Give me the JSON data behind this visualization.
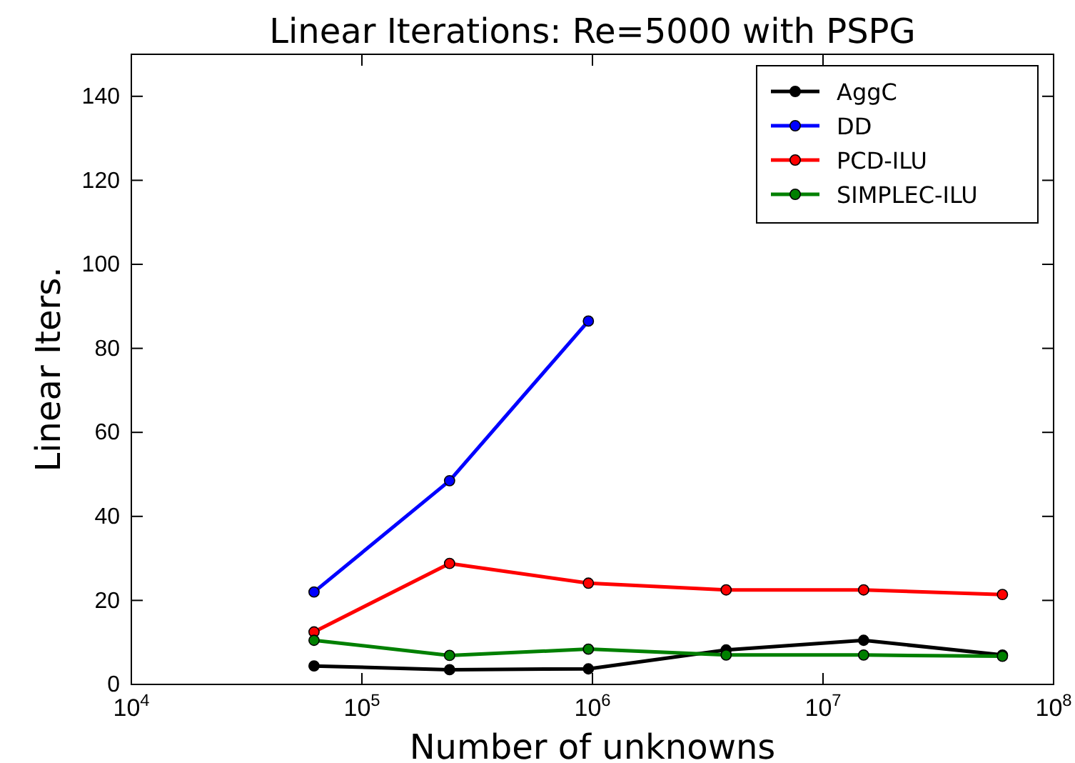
{
  "chart_data": {
    "type": "line",
    "title": "Linear Iterations: Re=5000 with PSPG",
    "xlabel": "Number of unknowns",
    "ylabel": "Linear Iters.",
    "x": [
      62000,
      240000,
      960000,
      3800000,
      15000000,
      60000000
    ],
    "series": [
      {
        "name": "AggC",
        "color": "#000000",
        "values": [
          4.4,
          3.5,
          3.7,
          8.2,
          10.5,
          7
        ]
      },
      {
        "name": "DD",
        "color": "#0000ff",
        "values": [
          22,
          48.5,
          86.5,
          null,
          null,
          null
        ]
      },
      {
        "name": "PCD-ILU",
        "color": "#ff0000",
        "values": [
          12.5,
          28.8,
          24.1,
          22.5,
          22.5,
          21.4
        ]
      },
      {
        "name": "SIMPLEC-ILU",
        "color": "#008000",
        "values": [
          10.5,
          6.9,
          8.4,
          7,
          7,
          6.7
        ]
      }
    ],
    "log": "x",
    "xlim": [
      10000,
      100000000
    ],
    "xticks": [
      {
        "value": 10000,
        "label": "10$^{4}$"
      },
      {
        "value": 100000,
        "label": "10$^{5}$"
      },
      {
        "value": 1000000,
        "label": "10$^{6}$"
      },
      {
        "value": 10000000,
        "label": "10$^{7}$"
      },
      {
        "value": 100000000,
        "label": "10$^{8}$"
      }
    ],
    "ylim": [
      0,
      150
    ],
    "yticks": [
      0,
      20,
      40,
      60,
      80,
      100,
      120,
      140
    ],
    "grid": false,
    "legend": "top right",
    "marker": "circle",
    "line_style": "solid"
  }
}
